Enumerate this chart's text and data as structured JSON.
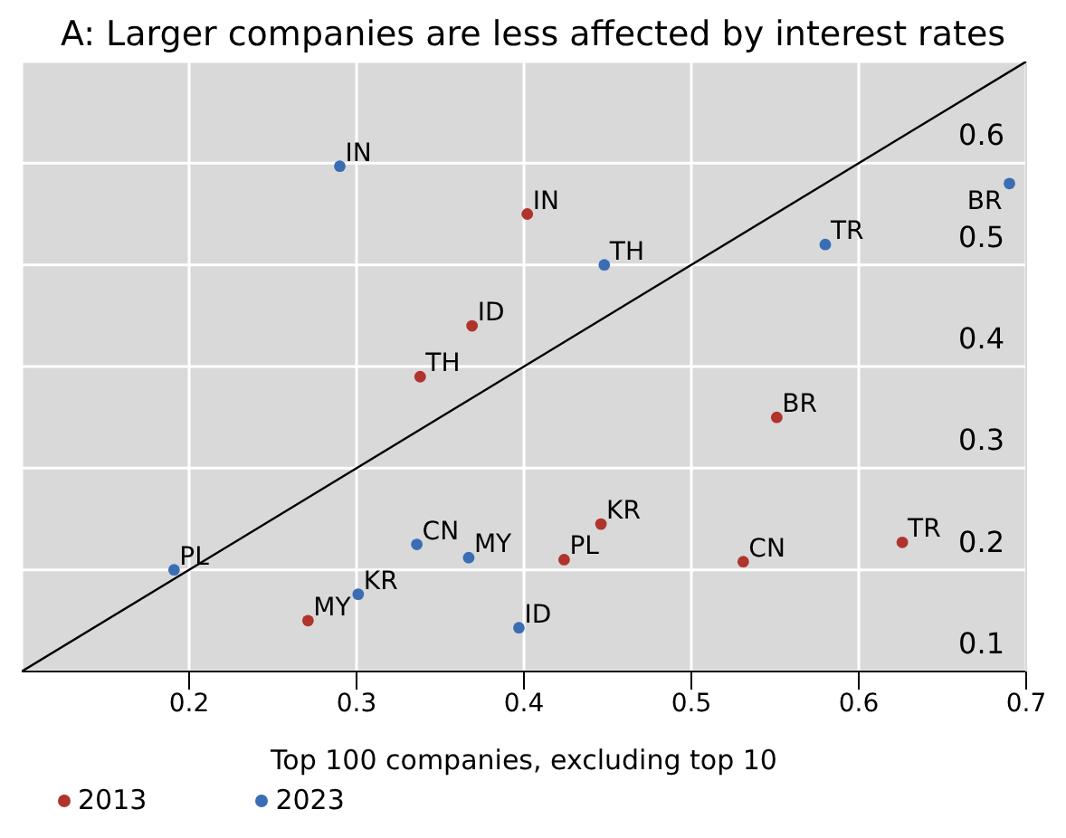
{
  "chart_data": {
    "type": "scatter",
    "title": "A: Larger companies are less affected by interest rates",
    "xlabel": "Top 100 companies, excluding top 10",
    "xlim": [
      0.1,
      0.7
    ],
    "xticks": [
      0.2,
      0.3,
      0.4,
      0.5,
      0.6,
      0.7
    ],
    "ylim": [
      0.1,
      0.7
    ],
    "yticks": [
      0.1,
      0.2,
      0.3,
      0.4,
      0.5,
      0.6
    ],
    "grid": true,
    "legend": "bottom left",
    "marker": "circle",
    "series": [
      {
        "name": "2013",
        "color": "#b0342c",
        "x": [
          0.402,
          0.369,
          0.338,
          0.551,
          0.446,
          0.626,
          0.531,
          0.424,
          0.271
        ],
        "values": [
          0.55,
          0.44,
          0.39,
          0.35,
          0.245,
          0.227,
          0.208,
          0.21,
          0.15
        ],
        "value_labels": [
          "IN",
          "ID",
          "TH",
          "BR",
          "KR",
          "TR",
          "CN",
          "PL",
          "MY"
        ]
      },
      {
        "name": "2023",
        "color": "#3a6db3",
        "x": [
          0.29,
          0.448,
          0.58,
          0.69,
          0.336,
          0.367,
          0.191,
          0.301,
          0.397
        ],
        "values": [
          0.597,
          0.5,
          0.52,
          0.58,
          0.225,
          0.212,
          0.2,
          0.176,
          0.143
        ],
        "value_labels": [
          "IN",
          "TH",
          "TR",
          "BR",
          "CN",
          "MY",
          "PL",
          "KR",
          "ID"
        ]
      },
      {
        "type": "line",
        "color": "#000000",
        "marker": "none",
        "x": [
          0.1,
          0.7
        ],
        "values": [
          0.1,
          0.7
        ]
      }
    ]
  }
}
